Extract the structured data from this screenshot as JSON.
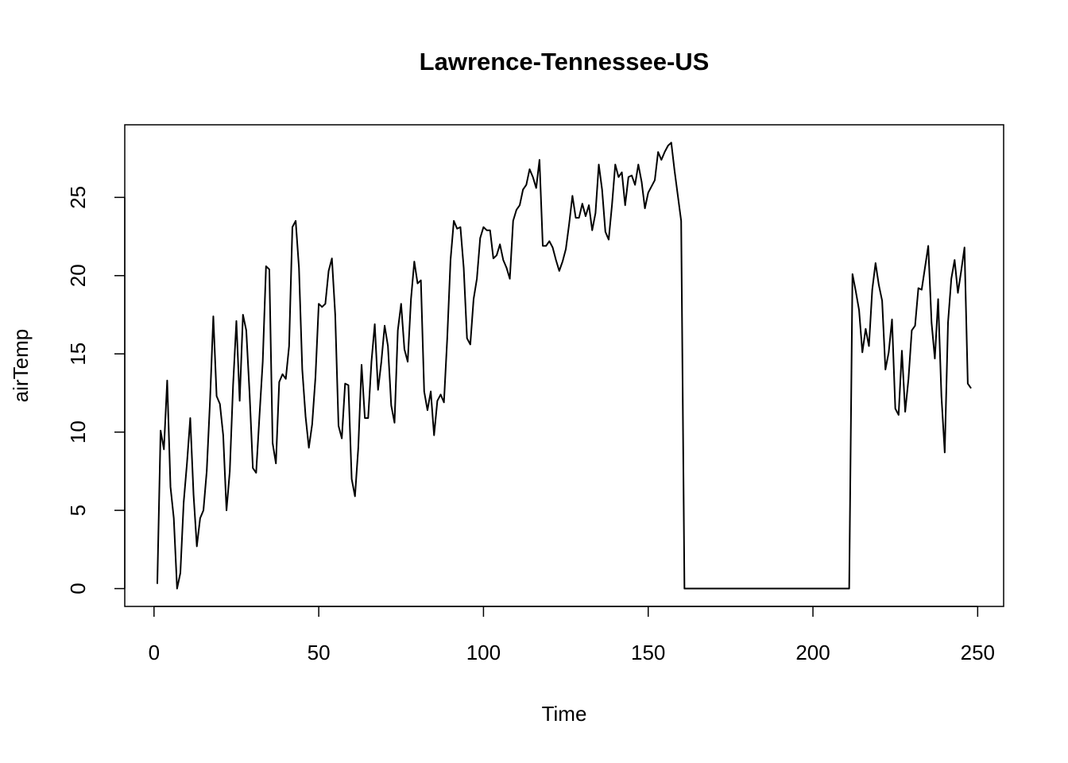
{
  "chart_data": {
    "type": "line",
    "title": "Lawrence-Tennessee-US",
    "x_label": "Time",
    "y_label": "airTemp",
    "x": [
      1,
      2,
      3,
      4,
      5,
      6,
      7,
      8,
      9,
      10,
      11,
      12,
      13,
      14,
      15,
      16,
      17,
      18,
      19,
      20,
      21,
      22,
      23,
      24,
      25,
      26,
      27,
      28,
      29,
      30,
      31,
      32,
      33,
      34,
      35,
      36,
      37,
      38,
      39,
      40,
      41,
      42,
      43,
      44,
      45,
      46,
      47,
      48,
      49,
      50,
      51,
      52,
      53,
      54,
      55,
      56,
      57,
      58,
      59,
      60,
      61,
      62,
      63,
      64,
      65,
      66,
      67,
      68,
      69,
      70,
      71,
      72,
      73,
      74,
      75,
      76,
      77,
      78,
      79,
      80,
      81,
      82,
      83,
      84,
      85,
      86,
      87,
      88,
      89,
      90,
      91,
      92,
      93,
      94,
      95,
      96,
      97,
      98,
      99,
      100,
      101,
      102,
      103,
      104,
      105,
      106,
      107,
      108,
      109,
      110,
      111,
      112,
      113,
      114,
      115,
      116,
      117,
      118,
      119,
      120,
      121,
      122,
      123,
      124,
      125,
      126,
      127,
      128,
      129,
      130,
      131,
      132,
      133,
      134,
      135,
      136,
      137,
      138,
      139,
      140,
      141,
      142,
      143,
      144,
      145,
      146,
      147,
      148,
      149,
      150,
      151,
      152,
      153,
      154,
      155,
      156,
      157,
      158,
      159,
      160,
      161,
      162,
      163,
      164,
      165,
      166,
      167,
      168,
      169,
      170,
      171,
      172,
      173,
      174,
      175,
      176,
      177,
      178,
      179,
      180,
      181,
      182,
      183,
      184,
      185,
      186,
      187,
      188,
      189,
      190,
      191,
      192,
      193,
      194,
      195,
      196,
      197,
      198,
      199,
      200,
      201,
      202,
      203,
      204,
      205,
      206,
      207,
      208,
      209,
      210,
      211,
      212,
      213,
      214,
      215,
      216,
      217,
      218,
      219,
      220,
      221,
      222,
      223,
      224,
      225,
      226,
      227,
      228,
      229,
      230,
      231,
      232,
      233,
      234,
      235,
      236,
      237,
      238,
      239,
      240,
      241,
      242,
      243,
      244,
      245,
      246,
      247,
      248
    ],
    "series": [
      {
        "color": "#000000",
        "values": [
          0.3,
          10.1,
          8.9,
          13.3,
          6.5,
          4.5,
          0,
          1,
          5.5,
          8,
          10.9,
          6,
          2.7,
          4.5,
          5,
          7.5,
          12,
          17.4,
          12.3,
          11.8,
          9.8,
          5,
          7.5,
          13,
          17.1,
          12,
          17.5,
          16.5,
          12.5,
          7.7,
          7.4,
          11,
          14.5,
          20.6,
          20.4,
          9.3,
          8,
          13.2,
          13.7,
          13.4,
          15.5,
          23.1,
          23.5,
          20.5,
          14,
          11,
          9,
          10.5,
          13.5,
          18.2,
          18,
          18.2,
          20.3,
          21.1,
          17.5,
          10.4,
          9.6,
          13.1,
          13,
          7,
          5.9,
          9,
          14.3,
          10.9,
          10.9,
          14.5,
          16.9,
          12.7,
          14.5,
          16.8,
          15.5,
          11.7,
          10.6,
          16.5,
          18.2,
          15.3,
          14.5,
          18.5,
          20.9,
          19.5,
          19.7,
          12.6,
          11.4,
          12.6,
          9.8,
          12,
          12.4,
          11.9,
          16,
          21,
          23.5,
          23,
          23.1,
          20.5,
          16,
          15.6,
          18.5,
          19.8,
          22.4,
          23.1,
          22.9,
          22.9,
          21.1,
          21.3,
          22,
          21,
          20.5,
          19.8,
          23.5,
          24.2,
          24.5,
          25.5,
          25.8,
          26.8,
          26.3,
          25.6,
          27.4,
          21.9,
          21.9,
          22.2,
          21.8,
          21,
          20.3,
          20.9,
          21.7,
          23.3,
          25.1,
          23.7,
          23.7,
          24.6,
          23.8,
          24.5,
          22.9,
          24,
          27.1,
          25.5,
          22.8,
          22.3,
          24.5,
          27.1,
          26.3,
          26.6,
          24.5,
          26.3,
          26.4,
          25.8,
          27.1,
          26,
          24.3,
          25.3,
          25.7,
          26.1,
          27.9,
          27.4,
          27.9,
          28.3,
          28.5,
          26.7,
          25.1,
          23.5,
          0,
          0,
          0,
          0,
          0,
          0,
          0,
          0,
          0,
          0,
          0,
          0,
          0,
          0,
          0,
          0,
          0,
          0,
          0,
          0,
          0,
          0,
          0,
          0,
          0,
          0,
          0,
          0,
          0,
          0,
          0,
          0,
          0,
          0,
          0,
          0,
          0,
          0,
          0,
          0,
          0,
          0,
          0,
          0,
          0,
          0,
          0,
          0,
          0,
          0,
          0,
          20.1,
          19,
          17.8,
          15.1,
          16.6,
          15.5,
          19.1,
          20.8,
          19.4,
          18.4,
          14,
          15.1,
          17.2,
          11.5,
          11.1,
          15.2,
          11.3,
          13.4,
          16.5,
          16.8,
          19.2,
          19.1,
          20.5,
          21.9,
          17,
          14.7,
          18.5,
          12.3,
          8.7,
          17,
          19.8,
          21,
          18.9,
          20.3,
          21.8,
          13.1,
          12.8
        ]
      }
    ],
    "xlim": [
      -8.88,
      257.88
    ],
    "ylim": [
      -1.14,
      29.64
    ],
    "xticks": [
      0,
      50,
      100,
      150,
      200,
      250
    ],
    "yticks": [
      0,
      5,
      10,
      15,
      20,
      25
    ],
    "grid": false
  }
}
